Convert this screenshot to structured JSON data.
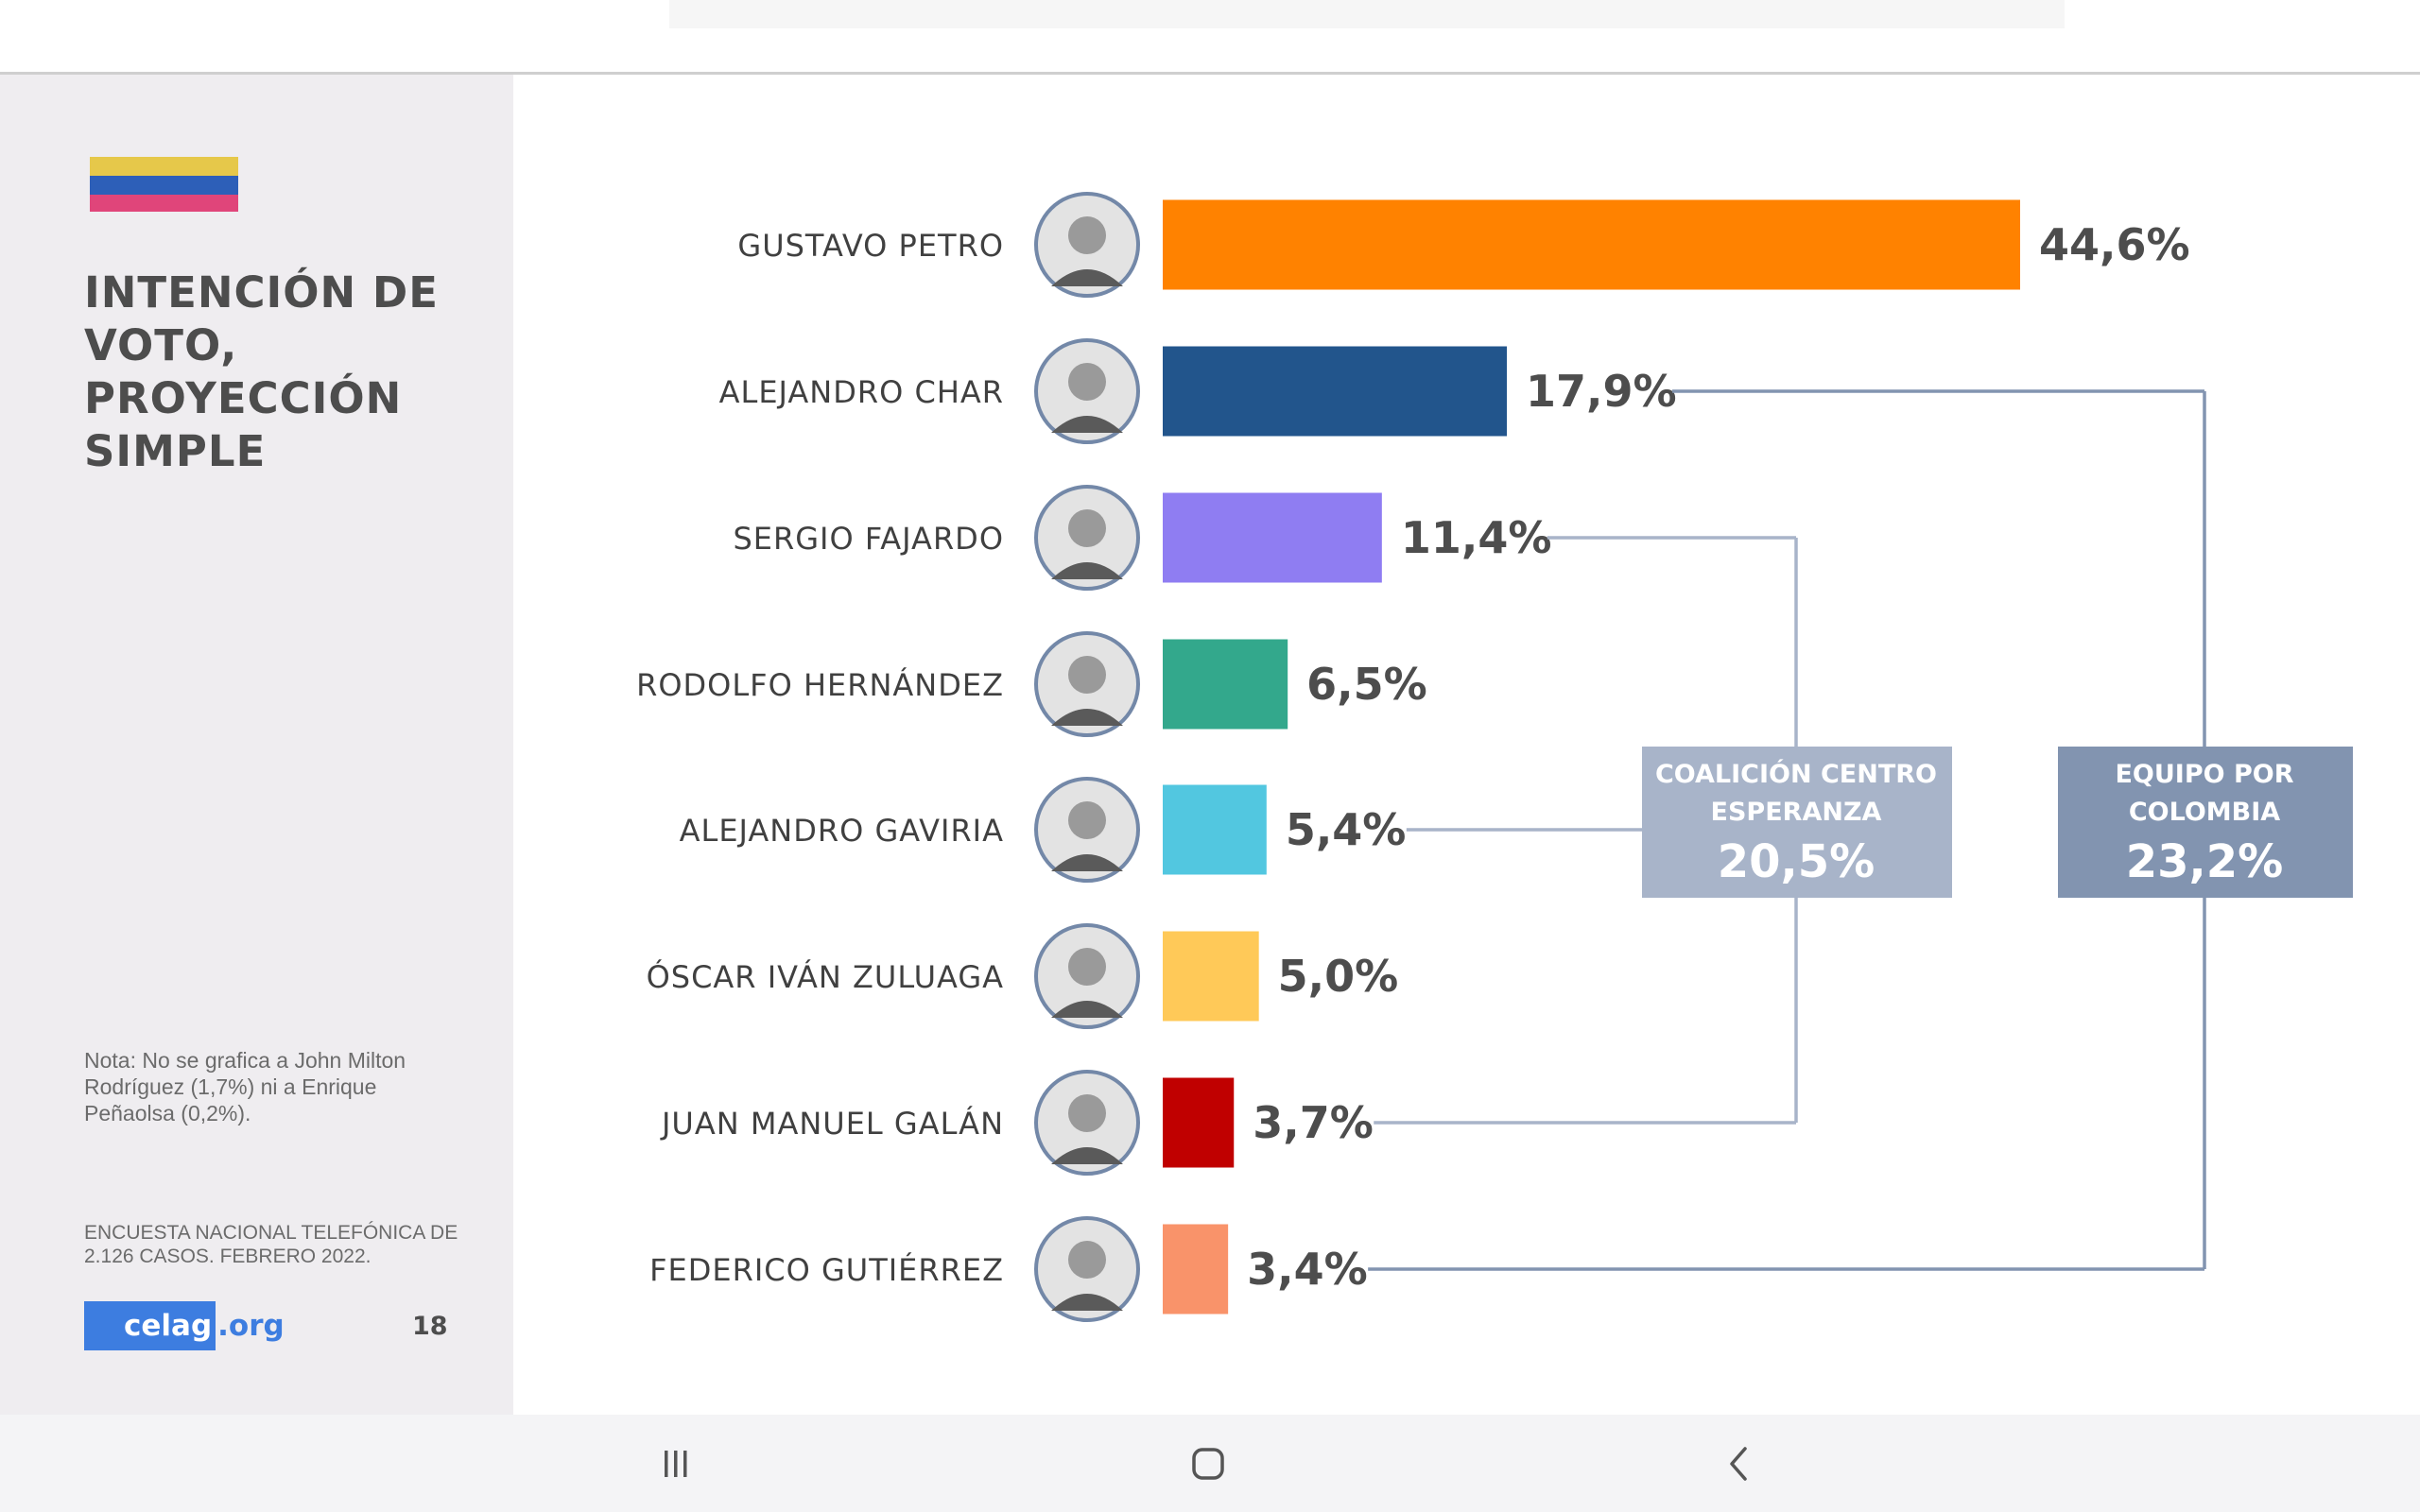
{
  "slide": {
    "title_lines": [
      "INTENCIÓN DE",
      "VOTO,",
      "PROYECCIÓN",
      "SIMPLE"
    ],
    "note_lines": [
      "Nota: No se grafica a John Milton",
      "Rodríguez (1,7%) ni a Enrique",
      "Peñaolsa (0,2%)."
    ],
    "source_lines": [
      "ENCUESTA NACIONAL TELEFÓNICA DE",
      "2.126 CASOS. FEBRERO 2022."
    ],
    "logo_main": "celag",
    "logo_suffix": ".org",
    "page_number": "18",
    "flag_colors": [
      "#e6c84a",
      "#2d5fb8",
      "#e0457a"
    ]
  },
  "chart_data": {
    "type": "bar",
    "orientation": "horizontal",
    "title": "",
    "xlabel": "",
    "ylabel": "",
    "xlim": [
      0,
      50
    ],
    "grid": false,
    "categories": [
      "GUSTAVO PETRO",
      "ALEJANDRO CHAR",
      "SERGIO FAJARDO",
      "RODOLFO HERNÁNDEZ",
      "ALEJANDRO GAVIRIA",
      "ÓSCAR IVÁN ZULUAGA",
      "JUAN MANUEL GALÁN",
      "FEDERICO GUTIÉRREZ"
    ],
    "values": [
      44.6,
      17.9,
      11.4,
      6.5,
      5.4,
      5.0,
      3.7,
      3.4
    ],
    "value_labels": [
      "44,6%",
      "17,9%",
      "11,4%",
      "6,5%",
      "5,4%",
      "5,0%",
      "3,7%",
      "3,4%"
    ],
    "colors": [
      "#ff8200",
      "#22558c",
      "#8f7df2",
      "#33a88c",
      "#52c7e0",
      "#ffc958",
      "#c00000",
      "#f9936a"
    ],
    "groups": [
      {
        "name_lines": [
          "COALICIÓN CENTRO",
          "ESPERANZA"
        ],
        "value_label": "20,5%",
        "color": "#a8b4c9",
        "members": [
          2,
          4,
          6
        ]
      },
      {
        "name_lines": [
          "EQUIPO POR",
          "COLOMBIA"
        ],
        "value_label": "23,2%",
        "color": "#8294b0",
        "members": [
          1,
          7
        ]
      }
    ]
  },
  "navbar": {
    "icons": [
      "recent-apps-icon",
      "home-icon",
      "back-icon"
    ]
  }
}
